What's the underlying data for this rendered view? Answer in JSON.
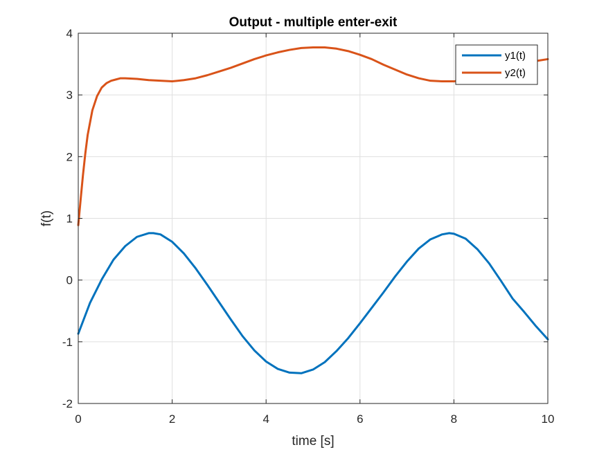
{
  "chart_data": {
    "type": "line",
    "title": "Output - multiple enter-exit",
    "xlabel": "time [s]",
    "ylabel": "f(t)",
    "xlim": [
      0,
      10
    ],
    "ylim": [
      -2,
      4
    ],
    "xticks": [
      0,
      2,
      4,
      6,
      8,
      10
    ],
    "yticks": [
      -2,
      -1,
      0,
      1,
      2,
      3,
      4
    ],
    "xtick_labels": [
      "0",
      "2",
      "4",
      "6",
      "8",
      "10"
    ],
    "ytick_labels": [
      "-2",
      "-1",
      "0",
      "1",
      "2",
      "3",
      "4"
    ],
    "grid": true,
    "legend_position": "top-right",
    "series": [
      {
        "name": "y1(t)",
        "color": "#0072BD",
        "x": [
          0,
          0.25,
          0.5,
          0.75,
          1,
          1.25,
          1.5,
          1.6,
          1.75,
          2,
          2.25,
          2.5,
          2.75,
          3,
          3.25,
          3.5,
          3.75,
          4,
          4.25,
          4.5,
          4.75,
          5,
          5.25,
          5.5,
          5.75,
          6,
          6.25,
          6.5,
          6.75,
          7,
          7.25,
          7.5,
          7.75,
          7.9,
          8,
          8.25,
          8.5,
          8.75,
          9,
          9.25,
          9.5,
          9.75,
          10
        ],
        "y": [
          -0.87,
          -0.37,
          0.01,
          0.33,
          0.55,
          0.7,
          0.76,
          0.76,
          0.74,
          0.62,
          0.43,
          0.19,
          -0.08,
          -0.36,
          -0.64,
          -0.91,
          -1.14,
          -1.32,
          -1.44,
          -1.5,
          -1.51,
          -1.45,
          -1.33,
          -1.15,
          -0.94,
          -0.7,
          -0.45,
          -0.2,
          0.06,
          0.3,
          0.51,
          0.66,
          0.74,
          0.76,
          0.75,
          0.67,
          0.5,
          0.27,
          -0.01,
          -0.3,
          -0.52,
          -0.75,
          -0.96
        ]
      },
      {
        "name": "y2(t)",
        "color": "#D95319",
        "x": [
          0,
          0.05,
          0.1,
          0.15,
          0.2,
          0.3,
          0.4,
          0.5,
          0.6,
          0.7,
          0.8,
          0.9,
          1,
          1.25,
          1.5,
          1.75,
          2,
          2.25,
          2.5,
          2.75,
          3,
          3.25,
          3.5,
          3.75,
          4,
          4.25,
          4.5,
          4.75,
          5,
          5.25,
          5.5,
          5.75,
          6,
          6.25,
          6.5,
          6.75,
          7,
          7.25,
          7.5,
          7.75,
          8,
          8.25,
          8.5,
          8.75,
          9,
          9.25,
          9.5,
          9.75,
          10
        ],
        "y": [
          0.89,
          1.3,
          1.7,
          2.05,
          2.35,
          2.75,
          2.98,
          3.12,
          3.19,
          3.23,
          3.25,
          3.27,
          3.27,
          3.26,
          3.24,
          3.23,
          3.22,
          3.24,
          3.27,
          3.32,
          3.38,
          3.44,
          3.51,
          3.58,
          3.64,
          3.69,
          3.73,
          3.76,
          3.77,
          3.77,
          3.75,
          3.71,
          3.65,
          3.58,
          3.49,
          3.41,
          3.33,
          3.27,
          3.23,
          3.22,
          3.22,
          3.25,
          3.29,
          3.34,
          3.4,
          3.46,
          3.51,
          3.55,
          3.58
        ]
      }
    ]
  }
}
